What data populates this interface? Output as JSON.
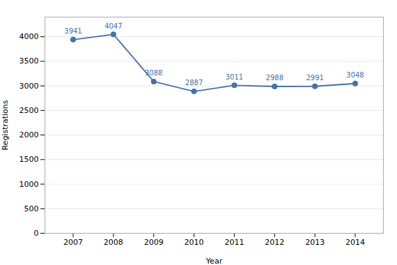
{
  "chart_data": {
    "type": "line",
    "x": [
      2007,
      2008,
      2009,
      2010,
      2011,
      2012,
      2013,
      2014
    ],
    "values": [
      3941,
      4047,
      3088,
      2887,
      3011,
      2988,
      2991,
      3048
    ],
    "xlabel": "Year",
    "ylabel": "Registrations",
    "xlim": [
      2006.3,
      2014.7
    ],
    "xticks": [
      2007,
      2008,
      2009,
      2010,
      2011,
      2012,
      2013,
      2014
    ],
    "ylim": [
      0,
      4400
    ],
    "yticks": [
      0,
      500,
      1000,
      1500,
      2000,
      2500,
      3000,
      3500,
      4000
    ],
    "grid": "y",
    "color": "#4472a8",
    "marker": "circle",
    "data_labels": true
  }
}
